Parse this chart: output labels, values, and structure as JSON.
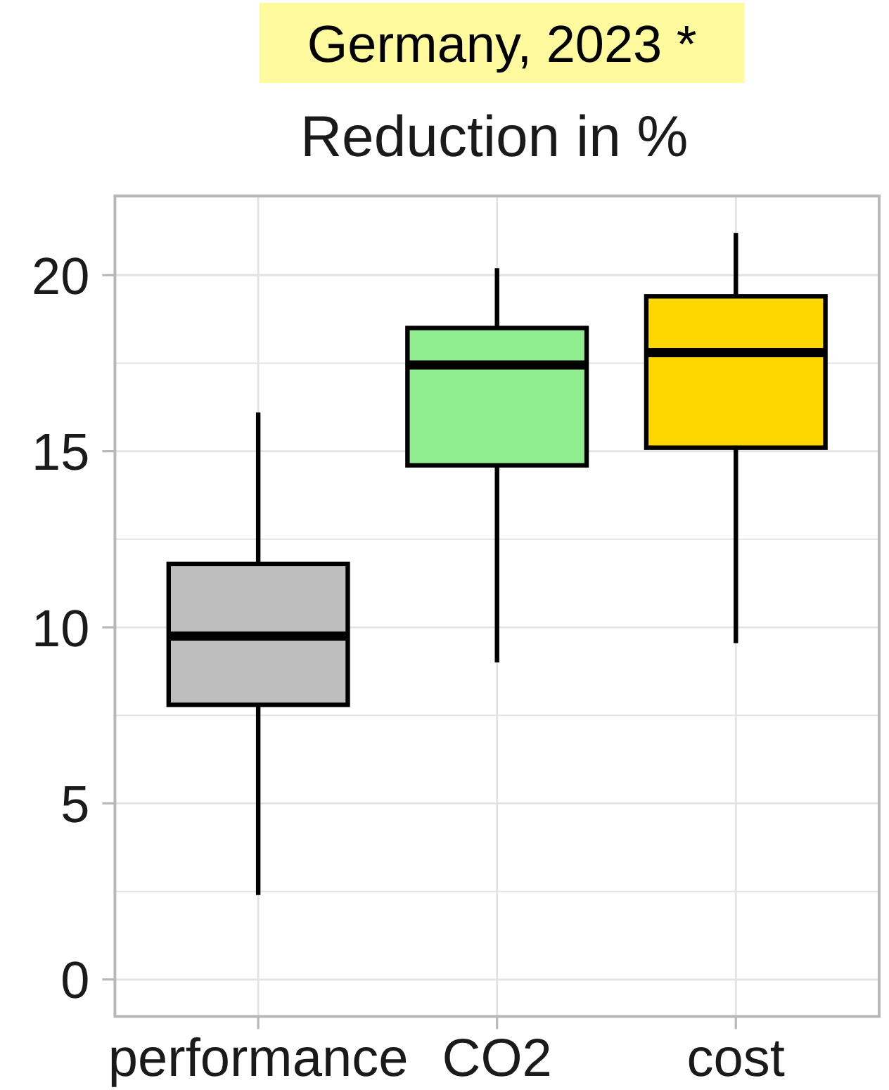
{
  "chart_data": {
    "type": "box",
    "title": "Germany, 2023 *",
    "subtitle": "Reduction in %",
    "categories": [
      "performance",
      "CO2",
      "cost"
    ],
    "boxes": [
      {
        "low": 2.4,
        "q1": 7.8,
        "median": 9.75,
        "q3": 11.8,
        "high": 16.1
      },
      {
        "low": 9.0,
        "q1": 14.6,
        "median": 17.45,
        "q3": 18.5,
        "high": 20.2
      },
      {
        "low": 9.55,
        "q1": 15.1,
        "median": 17.8,
        "q3": 19.4,
        "high": 21.2
      }
    ],
    "colors": [
      "#bebebe",
      "#90ee90",
      "#ffd700"
    ],
    "ylim": [
      -1.05,
      22.25
    ],
    "yticks": [
      0,
      {
        "value": 2.5,
        "label": null
      },
      5,
      {
        "value": 7.5,
        "label": null
      },
      10,
      {
        "value": 12.5,
        "label": null
      },
      15,
      {
        "value": 17.5,
        "label": null
      },
      20
    ],
    "grid": true
  }
}
